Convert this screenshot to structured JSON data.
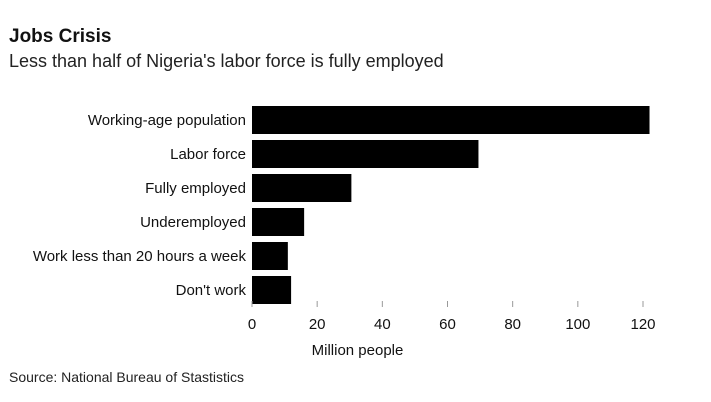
{
  "chart_data": {
    "type": "bar",
    "orientation": "horizontal",
    "title": "Jobs Crisis",
    "subtitle": "Less than half of Nigeria's labor force is fully employed",
    "categories": [
      "Working-age population",
      "Labor force",
      "Fully employed",
      "Underemployed",
      "Work less than 20 hours a week",
      "Don't work"
    ],
    "values": [
      122.0,
      69.5,
      30.5,
      16.0,
      11.0,
      12.0
    ],
    "xlabel": "Million people",
    "ylabel": "",
    "xlim": [
      0,
      120
    ],
    "xticks": [
      "0",
      "20",
      "40",
      "60",
      "80",
      "100",
      "120"
    ],
    "grid": false,
    "bar_color": "#000000",
    "source": "Source: National Bureau of Stastistics"
  }
}
